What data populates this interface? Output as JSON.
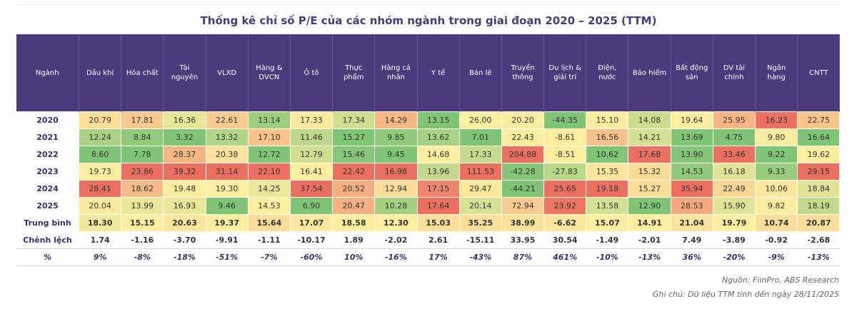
{
  "title": "Thống kê chỉ số P/E của các nhóm ngành trong giai đoạn 2020 – 2025 (TTM)",
  "table": {
    "header": [
      "Ngành",
      "Dầu khí",
      "Hóa chất",
      "Tài nguyên",
      "VLXD",
      "Hàng & DVCN",
      "Ô tô",
      "Thực phẩm",
      "Hàng cá nhân",
      "Y tế",
      "Bán lẻ",
      "Truyền thông",
      "Du lịch & giải trí",
      "Điện, nước",
      "Bảo hiểm",
      "Bất động sản",
      "DV tài chính",
      "Ngân hàng",
      "CNTT"
    ],
    "rows": [
      [
        "2020",
        "20.79",
        "17.81",
        "16.36",
        "22.61",
        "13.14",
        "17.33",
        "17.34",
        "14.29",
        "13.15",
        "26.00",
        "20.20",
        "-44.35",
        "15.10",
        "14.08",
        "19.64",
        "25.95",
        "16.23",
        "22.75"
      ],
      [
        "2021",
        "12.24",
        "8.84",
        "3.32",
        "13.32",
        "17.10",
        "11.46",
        "15.27",
        "9.85",
        "13.62",
        "7.01",
        "22.43",
        "-8.61",
        "16.56",
        "14.21",
        "13.69",
        "4.75",
        "9.80",
        "16.64"
      ],
      [
        "2022",
        "8.60",
        "7.78",
        "28.37",
        "20.38",
        "12.72",
        "12.79",
        "15.46",
        "9.45",
        "14.68",
        "17.33",
        "204.88",
        "-8.51",
        "10.62",
        "17.68",
        "13.90",
        "33.46",
        "9.22",
        "19.62"
      ],
      [
        "2023",
        "19.73",
        "23.86",
        "39.32",
        "31.14",
        "22.10",
        "16.41",
        "22.42",
        "16.98",
        "13.96",
        "111.53",
        "-42.28",
        "-27.83",
        "15.35",
        "15.32",
        "14.53",
        "16.18",
        "9.33",
        "29.15"
      ],
      [
        "2024",
        "28.41",
        "18.62",
        "19.48",
        "19.30",
        "14.25",
        "37.54",
        "20.52",
        "12.94",
        "17.15",
        "29.47",
        "-44.21",
        "25.65",
        "19.18",
        "15.27",
        "35.94",
        "22.49",
        "10.06",
        "18.84"
      ],
      [
        "2025",
        "20.04",
        "13.99",
        "16.93",
        "9.46",
        "14.53",
        "6.90",
        "20.47",
        "10.28",
        "17.64",
        "20.14",
        "72.94",
        "23.92",
        "13.58",
        "12.90",
        "28.53",
        "15.90",
        "9.82",
        "18.19"
      ],
      [
        "Trung bình",
        "18.30",
        "15.15",
        "20.63",
        "19.37",
        "15.64",
        "17.07",
        "18.58",
        "12.30",
        "15.03",
        "35.25",
        "38.99",
        "-6.62",
        "15.07",
        "14.91",
        "21.04",
        "19.79",
        "10.74",
        "20.87"
      ],
      [
        "Chênh lệch",
        "1.74",
        "-1.16",
        "-3.70",
        "-9.91",
        "-1.11",
        "-10.17",
        "1.89",
        "-2.02",
        "2.61",
        "-15.11",
        "33.95",
        "30.54",
        "-1.49",
        "-2.01",
        "7.49",
        "-3.89",
        "-0.92",
        "-2.68"
      ],
      [
        "%",
        "9%",
        "-8%",
        "-18%",
        "-51%",
        "-7%",
        "-60%",
        "10%",
        "-16%",
        "17%",
        "-43%",
        "87%",
        "461%",
        "-10%",
        "-13%",
        "36%",
        "-20%",
        "-9%",
        "-13%"
      ]
    ]
  },
  "footer": {
    "source": "Nguồn: FiinPro, ABS Research",
    "note": "Ghi chú: Dữ liệu TTM tính đến ngày 28/11/2025"
  }
}
